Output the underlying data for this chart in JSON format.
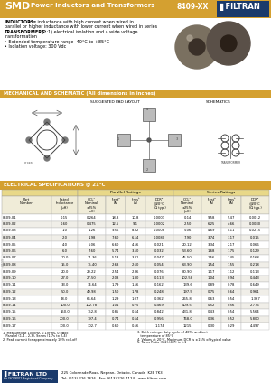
{
  "page_bg": "#FFFFFF",
  "orange_color": "#D4A030",
  "orange_light": "#E8C860",
  "blue_dark": "#1a3a6b",
  "gray_light": "#F2F2F2",
  "gray_med": "#CCCCCC",
  "gray_dark": "#888888",
  "row_even": "#FFFFFF",
  "row_odd": "#F0EEE8",
  "table_data": [
    [
      "8409-01",
      "0.15",
      "0.264",
      "18.8",
      "10.8",
      "0.0001",
      "0.14",
      "9.58",
      "5.47",
      "0.0012"
    ],
    [
      "8409-02",
      "0.60",
      "0.475",
      "12.5",
      "9.1",
      "0.0002",
      "2.50",
      "6.25",
      "4.66",
      "0.0080"
    ],
    [
      "8409-03",
      "1.0",
      "1.26",
      "9.56",
      "8.32",
      "0.0008",
      "5.06",
      "4.69",
      "4.11",
      "0.0215"
    ],
    [
      "8409-04",
      "2.0",
      "1.98",
      "7.60",
      "6.14",
      "0.0080",
      "7.90",
      "3.74",
      "3.17",
      "0.015"
    ],
    [
      "8409-05",
      "4.0",
      "5.06",
      "6.60",
      "4.56",
      "0.021",
      "20.12",
      "3.34",
      "2.17",
      "0.066"
    ],
    [
      "8409-06",
      "6.0",
      "7.60",
      "5.74",
      "3.50",
      "0.032",
      "53.60",
      "1.68",
      "1.75",
      "0.129"
    ],
    [
      "8409-07",
      "10.0",
      "11.36",
      "5.13",
      "3.81",
      "0.047",
      "45.50",
      "1.56",
      "1.45",
      "0.168"
    ],
    [
      "8409-08",
      "15.0",
      "15.40",
      "2.68",
      "2.60",
      "0.054",
      "63.90",
      "1.54",
      "1.55",
      "0.218"
    ],
    [
      "8409-09",
      "20.0",
      "20.22",
      "2.54",
      "2.36",
      "0.076",
      "80.90",
      "1.17",
      "1.12",
      "0.113"
    ],
    [
      "8409-10",
      "27.0",
      "27.50",
      "2.08",
      "1.80",
      "0.113",
      "102.58",
      "1.04",
      "0.94",
      "0.443"
    ],
    [
      "8409-11",
      "33.0",
      "34.64",
      "1.79",
      "1.56",
      "0.162",
      "139.6",
      "0.89",
      "0.78",
      "0.649"
    ],
    [
      "8409-12",
      "50.0",
      "49.98",
      "1.50",
      "1.78",
      "0.248",
      "197.5",
      "0.75",
      "0.64",
      "0.961"
    ],
    [
      "8409-13",
      "68.0",
      "66.64",
      "1.29",
      "1.07",
      "0.362",
      "265.8",
      "0.63",
      "0.54",
      "1.367"
    ],
    [
      "8409-14",
      "100.0",
      "102.78",
      "1.04",
      "0.75",
      "0.469",
      "409.5",
      "0.52",
      "0.56",
      "2.776"
    ],
    [
      "8409-15",
      "150.0",
      "152.8",
      "0.85",
      "0.64",
      "0.842",
      "431.8",
      "0.43",
      "0.54",
      "5.564"
    ],
    [
      "8409-16",
      "200.0",
      "197.4",
      "0.74",
      "0.64",
      "0.956",
      "768.0",
      "0.36",
      "0.52",
      "5.800"
    ],
    [
      "8409-17",
      "300.0",
      "302.7",
      "0.60",
      "0.56",
      "1.174",
      "1215",
      "0.30",
      "0.29",
      "4.497"
    ]
  ],
  "col_widths_rel": [
    30,
    16,
    17,
    12,
    12,
    17,
    17,
    12,
    12,
    17
  ],
  "col_headers": [
    "Part\nNumber",
    "Rated\nInductance\n(μH)",
    "OCL¹\nNominal\n±25%\n(μH)",
    "Itest²\n(A)",
    "Irms³\n(A)",
    "DCR⁴\n@20°C\n(Ω typ.)",
    "OCL¹\nNominal\n±25%\n(μH)",
    "Itest²\n(A)",
    "Irms³\n(A)",
    "DCR⁴\n@20°C\n(Ω typ.)"
  ],
  "left_fns": [
    "1. Measured at 100kHz, 0.1Vrms, 0.0Adc",
    "   Parallel (1,4 - 2,3), Series (1,7s to 2,4)",
    "2. Peak current for approximately 10% roll-off"
  ],
  "right_fns": [
    "3. Both ratings, duty cycle of 40%, ambient",
    "   temperature of 85°C",
    "4. Values at 20°C, Maximum DCR is ±15% of typical value",
    "5. Turns Ratio (1-2):(4-7) is 1:1"
  ]
}
